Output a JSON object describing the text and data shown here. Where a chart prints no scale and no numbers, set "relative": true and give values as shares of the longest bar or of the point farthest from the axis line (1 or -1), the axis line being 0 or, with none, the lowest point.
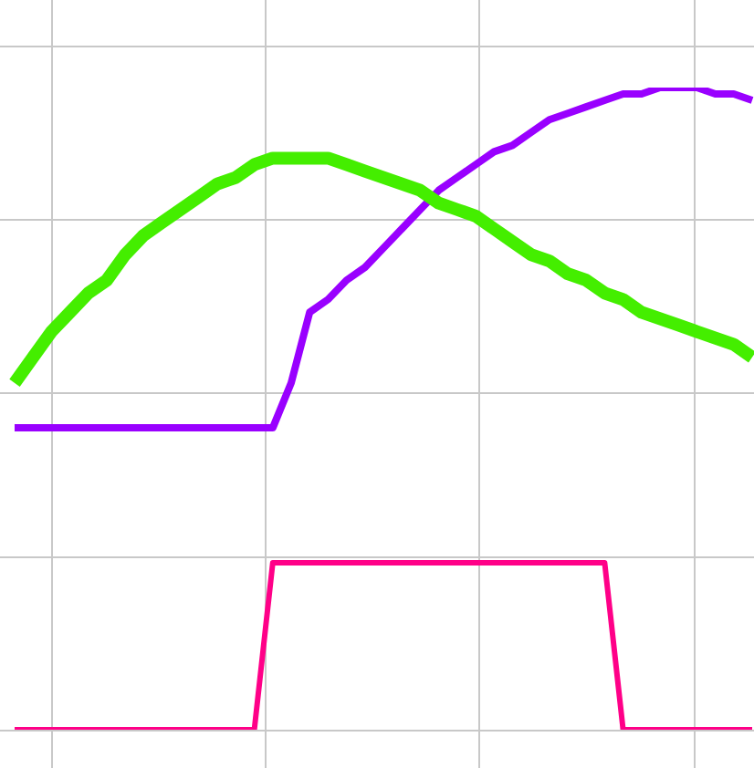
{
  "chart_data": {
    "type": "line",
    "relative": true,
    "grid": true,
    "legend": false,
    "marker": "none",
    "line_style": "solid",
    "categories": [
      null,
      null,
      null,
      null,
      null,
      null,
      null,
      null,
      null,
      null,
      null,
      null,
      null,
      null,
      null,
      null,
      null,
      null,
      null,
      null,
      null,
      null,
      null,
      null,
      null,
      null,
      null,
      null,
      null,
      null,
      null,
      null,
      null,
      null,
      null,
      null,
      null,
      null,
      null,
      null,
      null
    ],
    "series": [
      {
        "color": "#44ee00",
        "values": [
          0.54,
          0.58,
          0.62,
          0.65,
          0.68,
          0.7,
          0.74,
          0.77,
          0.79,
          0.81,
          0.83,
          0.85,
          0.86,
          0.88,
          0.89,
          0.89,
          0.89,
          0.89,
          0.88,
          0.87,
          0.86,
          0.85,
          0.84,
          0.82,
          0.81,
          0.8,
          0.78,
          0.76,
          0.74,
          0.73,
          0.71,
          0.7,
          0.68,
          0.67,
          0.65,
          0.64,
          0.63,
          0.62,
          0.61,
          0.6,
          0.58
        ]
      },
      {
        "color": "#9900ff",
        "values": [
          0.47,
          0.47,
          0.47,
          0.47,
          0.47,
          0.47,
          0.47,
          0.47,
          0.47,
          0.47,
          0.47,
          0.47,
          0.47,
          0.47,
          0.47,
          0.54,
          0.65,
          0.67,
          0.7,
          0.72,
          0.75,
          0.78,
          0.81,
          0.84,
          0.86,
          0.88,
          0.9,
          0.91,
          0.93,
          0.95,
          0.96,
          0.97,
          0.98,
          0.99,
          0.99,
          1,
          1,
          1,
          0.99,
          0.99,
          0.98
        ]
      },
      {
        "color": "#ff0088",
        "values": [
          0,
          0,
          0,
          0,
          0,
          0,
          0,
          0,
          0,
          0,
          0,
          0,
          0,
          0,
          0.26,
          0.26,
          0.26,
          0.26,
          0.26,
          0.26,
          0.26,
          0.26,
          0.26,
          0.26,
          0.26,
          0.26,
          0.26,
          0.26,
          0.26,
          0.26,
          0.26,
          0.26,
          0.26,
          0,
          0,
          0,
          0,
          0,
          0,
          0,
          0
        ]
      }
    ]
  }
}
